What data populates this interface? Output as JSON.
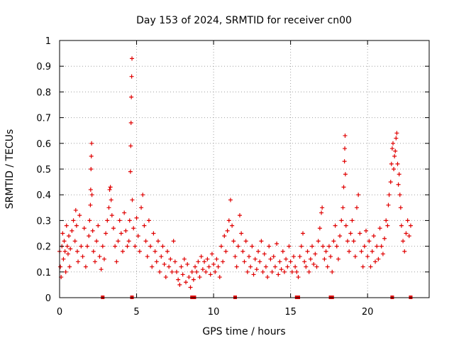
{
  "chart_data": {
    "type": "scatter",
    "title": "Day 153 of 2024, SRMTID for receiver cn00",
    "xlabel": "GPS time / hours",
    "ylabel": "SRMTID / TECUs",
    "xlim": [
      0,
      24
    ],
    "ylim": [
      0,
      1
    ],
    "xticks": [
      0,
      5,
      10,
      15,
      20
    ],
    "yticks": [
      0,
      0.1,
      0.2,
      0.3,
      0.4,
      0.5,
      0.6,
      0.7,
      0.8,
      0.9,
      1
    ],
    "xtick_labels": [
      "0",
      "5",
      "10",
      "15",
      "20"
    ],
    "ytick_labels": [
      "0",
      "0.1",
      "0.2",
      "0.3",
      "0.4",
      "0.5",
      "0.6",
      "0.7",
      "0.8",
      "0.9",
      "1"
    ],
    "grid": true,
    "marker": "+",
    "color": "#e00000",
    "series": [
      {
        "name": "SRMTID",
        "points": [
          [
            0.0,
            0.18
          ],
          [
            0.05,
            0.12
          ],
          [
            0.1,
            0.08
          ],
          [
            0.15,
            0.2
          ],
          [
            0.2,
            0.25
          ],
          [
            0.25,
            0.15
          ],
          [
            0.3,
            0.22
          ],
          [
            0.35,
            0.18
          ],
          [
            0.4,
            0.1
          ],
          [
            0.45,
            0.28
          ],
          [
            0.5,
            0.2
          ],
          [
            0.55,
            0.17
          ],
          [
            0.6,
            0.24
          ],
          [
            0.65,
            0.12
          ],
          [
            0.7,
            0.19
          ],
          [
            0.8,
            0.26
          ],
          [
            0.9,
            0.3
          ],
          [
            1.0,
            0.22
          ],
          [
            1.05,
            0.34
          ],
          [
            1.1,
            0.28
          ],
          [
            1.15,
            0.18
          ],
          [
            1.2,
            0.14
          ],
          [
            1.3,
            0.32
          ],
          [
            1.4,
            0.2
          ],
          [
            1.5,
            0.16
          ],
          [
            1.6,
            0.27
          ],
          [
            1.7,
            0.12
          ],
          [
            1.8,
            0.2
          ],
          [
            1.9,
            0.24
          ],
          [
            1.95,
            0.3
          ],
          [
            2.0,
            0.36
          ],
          [
            2.02,
            0.42
          ],
          [
            2.04,
            0.5
          ],
          [
            2.06,
            0.55
          ],
          [
            2.08,
            0.6
          ],
          [
            2.1,
            0.4
          ],
          [
            2.15,
            0.26
          ],
          [
            2.2,
            0.18
          ],
          [
            2.3,
            0.14
          ],
          [
            2.4,
            0.22
          ],
          [
            2.5,
            0.28
          ],
          [
            2.6,
            0.16
          ],
          [
            2.7,
            0.11
          ],
          [
            2.8,
            0.2
          ],
          [
            2.9,
            0.15
          ],
          [
            3.0,
            0.25
          ],
          [
            3.1,
            0.3
          ],
          [
            3.2,
            0.35
          ],
          [
            3.25,
            0.42
          ],
          [
            3.3,
            0.43
          ],
          [
            3.35,
            0.38
          ],
          [
            3.4,
            0.32
          ],
          [
            3.5,
            0.27
          ],
          [
            3.6,
            0.2
          ],
          [
            3.7,
            0.14
          ],
          [
            3.8,
            0.22
          ],
          [
            3.9,
            0.3
          ],
          [
            4.0,
            0.25
          ],
          [
            4.1,
            0.18
          ],
          [
            4.2,
            0.33
          ],
          [
            4.3,
            0.26
          ],
          [
            4.4,
            0.2
          ],
          [
            4.5,
            0.22
          ],
          [
            4.55,
            0.3
          ],
          [
            4.6,
            0.49
          ],
          [
            4.62,
            0.59
          ],
          [
            4.64,
            0.68
          ],
          [
            4.66,
            0.78
          ],
          [
            4.68,
            0.86
          ],
          [
            4.7,
            0.93
          ],
          [
            4.72,
            0.38
          ],
          [
            4.8,
            0.27
          ],
          [
            4.9,
            0.2
          ],
          [
            5.0,
            0.31
          ],
          [
            5.1,
            0.24
          ],
          [
            5.2,
            0.18
          ],
          [
            5.3,
            0.35
          ],
          [
            5.4,
            0.4
          ],
          [
            5.5,
            0.28
          ],
          [
            5.6,
            0.22
          ],
          [
            5.7,
            0.16
          ],
          [
            5.8,
            0.3
          ],
          [
            5.9,
            0.2
          ],
          [
            6.0,
            0.12
          ],
          [
            6.1,
            0.25
          ],
          [
            6.2,
            0.18
          ],
          [
            6.3,
            0.14
          ],
          [
            6.4,
            0.22
          ],
          [
            6.5,
            0.1
          ],
          [
            6.6,
            0.16
          ],
          [
            6.7,
            0.2
          ],
          [
            6.8,
            0.13
          ],
          [
            6.9,
            0.08
          ],
          [
            7.0,
            0.18
          ],
          [
            7.1,
            0.12
          ],
          [
            7.2,
            0.15
          ],
          [
            7.3,
            0.1
          ],
          [
            7.4,
            0.22
          ],
          [
            7.5,
            0.14
          ],
          [
            7.6,
            0.1
          ],
          [
            7.7,
            0.07
          ],
          [
            7.8,
            0.05
          ],
          [
            7.9,
            0.12
          ],
          [
            8.0,
            0.09
          ],
          [
            8.1,
            0.15
          ],
          [
            8.2,
            0.06
          ],
          [
            8.3,
            0.13
          ],
          [
            8.4,
            0.08
          ],
          [
            8.5,
            0.04
          ],
          [
            8.6,
            0.1
          ],
          [
            8.7,
            0.07
          ],
          [
            8.8,
            0.12
          ],
          [
            8.9,
            0.1
          ],
          [
            9.0,
            0.14
          ],
          [
            9.1,
            0.08
          ],
          [
            9.2,
            0.16
          ],
          [
            9.3,
            0.11
          ],
          [
            9.4,
            0.14
          ],
          [
            9.5,
            0.1
          ],
          [
            9.6,
            0.15
          ],
          [
            9.7,
            0.12
          ],
          [
            9.8,
            0.09
          ],
          [
            9.9,
            0.17
          ],
          [
            10.0,
            0.13
          ],
          [
            10.1,
            0.1
          ],
          [
            10.2,
            0.15
          ],
          [
            10.3,
            0.12
          ],
          [
            10.4,
            0.08
          ],
          [
            10.5,
            0.2
          ],
          [
            10.6,
            0.14
          ],
          [
            10.7,
            0.24
          ],
          [
            10.8,
            0.18
          ],
          [
            10.9,
            0.26
          ],
          [
            11.0,
            0.3
          ],
          [
            11.1,
            0.38
          ],
          [
            11.2,
            0.28
          ],
          [
            11.3,
            0.22
          ],
          [
            11.4,
            0.16
          ],
          [
            11.5,
            0.12
          ],
          [
            11.6,
            0.2
          ],
          [
            11.7,
            0.32
          ],
          [
            11.8,
            0.25
          ],
          [
            11.9,
            0.18
          ],
          [
            12.0,
            0.14
          ],
          [
            12.1,
            0.22
          ],
          [
            12.2,
            0.1
          ],
          [
            12.3,
            0.16
          ],
          [
            12.4,
            0.12
          ],
          [
            12.5,
            0.2
          ],
          [
            12.6,
            0.09
          ],
          [
            12.7,
            0.15
          ],
          [
            12.8,
            0.11
          ],
          [
            12.9,
            0.18
          ],
          [
            13.0,
            0.14
          ],
          [
            13.1,
            0.22
          ],
          [
            13.2,
            0.1
          ],
          [
            13.3,
            0.17
          ],
          [
            13.4,
            0.12
          ],
          [
            13.5,
            0.08
          ],
          [
            13.6,
            0.2
          ],
          [
            13.7,
            0.15
          ],
          [
            13.8,
            0.1
          ],
          [
            13.9,
            0.16
          ],
          [
            14.0,
            0.12
          ],
          [
            14.1,
            0.21
          ],
          [
            14.2,
            0.09
          ],
          [
            14.3,
            0.14
          ],
          [
            14.4,
            0.11
          ],
          [
            14.5,
            0.18
          ],
          [
            14.6,
            0.1
          ],
          [
            14.7,
            0.15
          ],
          [
            14.8,
            0.12
          ],
          [
            14.9,
            0.2
          ],
          [
            15.0,
            0.14
          ],
          [
            15.1,
            0.1
          ],
          [
            15.2,
            0.16
          ],
          [
            15.3,
            0.12
          ],
          [
            15.4,
            0.1
          ],
          [
            15.5,
            0.08
          ],
          [
            15.6,
            0.16
          ],
          [
            15.7,
            0.2
          ],
          [
            15.8,
            0.25
          ],
          [
            15.9,
            0.14
          ],
          [
            16.0,
            0.12
          ],
          [
            16.1,
            0.18
          ],
          [
            16.2,
            0.1
          ],
          [
            16.3,
            0.15
          ],
          [
            16.4,
            0.2
          ],
          [
            16.5,
            0.13
          ],
          [
            16.6,
            0.17
          ],
          [
            16.7,
            0.12
          ],
          [
            16.8,
            0.22
          ],
          [
            16.9,
            0.27
          ],
          [
            17.0,
            0.33
          ],
          [
            17.05,
            0.35
          ],
          [
            17.1,
            0.2
          ],
          [
            17.2,
            0.15
          ],
          [
            17.3,
            0.18
          ],
          [
            17.4,
            0.12
          ],
          [
            17.5,
            0.2
          ],
          [
            17.6,
            0.16
          ],
          [
            17.7,
            0.1
          ],
          [
            17.8,
            0.22
          ],
          [
            17.9,
            0.28
          ],
          [
            18.0,
            0.2
          ],
          [
            18.1,
            0.15
          ],
          [
            18.2,
            0.24
          ],
          [
            18.3,
            0.3
          ],
          [
            18.4,
            0.35
          ],
          [
            18.45,
            0.43
          ],
          [
            18.5,
            0.53
          ],
          [
            18.52,
            0.58
          ],
          [
            18.54,
            0.63
          ],
          [
            18.56,
            0.48
          ],
          [
            18.6,
            0.28
          ],
          [
            18.7,
            0.22
          ],
          [
            18.8,
            0.18
          ],
          [
            18.9,
            0.25
          ],
          [
            19.0,
            0.3
          ],
          [
            19.1,
            0.22
          ],
          [
            19.2,
            0.16
          ],
          [
            19.3,
            0.35
          ],
          [
            19.4,
            0.4
          ],
          [
            19.5,
            0.25
          ],
          [
            19.6,
            0.18
          ],
          [
            19.7,
            0.12
          ],
          [
            19.8,
            0.2
          ],
          [
            19.9,
            0.26
          ],
          [
            20.0,
            0.16
          ],
          [
            20.1,
            0.22
          ],
          [
            20.2,
            0.12
          ],
          [
            20.3,
            0.18
          ],
          [
            20.4,
            0.24
          ],
          [
            20.5,
            0.14
          ],
          [
            20.6,
            0.2
          ],
          [
            20.7,
            0.15
          ],
          [
            20.8,
            0.27
          ],
          [
            20.9,
            0.2
          ],
          [
            21.0,
            0.17
          ],
          [
            21.1,
            0.23
          ],
          [
            21.2,
            0.3
          ],
          [
            21.3,
            0.28
          ],
          [
            21.35,
            0.36
          ],
          [
            21.4,
            0.4
          ],
          [
            21.5,
            0.45
          ],
          [
            21.55,
            0.52
          ],
          [
            21.6,
            0.58
          ],
          [
            21.65,
            0.6
          ],
          [
            21.7,
            0.5
          ],
          [
            21.75,
            0.55
          ],
          [
            21.8,
            0.57
          ],
          [
            21.85,
            0.62
          ],
          [
            21.9,
            0.64
          ],
          [
            21.95,
            0.52
          ],
          [
            22.0,
            0.44
          ],
          [
            22.05,
            0.48
          ],
          [
            22.1,
            0.4
          ],
          [
            22.15,
            0.35
          ],
          [
            22.2,
            0.28
          ],
          [
            22.3,
            0.22
          ],
          [
            22.4,
            0.18
          ],
          [
            22.5,
            0.25
          ],
          [
            22.6,
            0.3
          ],
          [
            22.7,
            0.24
          ],
          [
            22.8,
            0.28
          ]
        ]
      }
    ],
    "axis_marker_hours": [
      2.8,
      4.7,
      8.6,
      8.75,
      11.4,
      15.4,
      15.5,
      17.6,
      17.7,
      21.6,
      22.8
    ]
  }
}
